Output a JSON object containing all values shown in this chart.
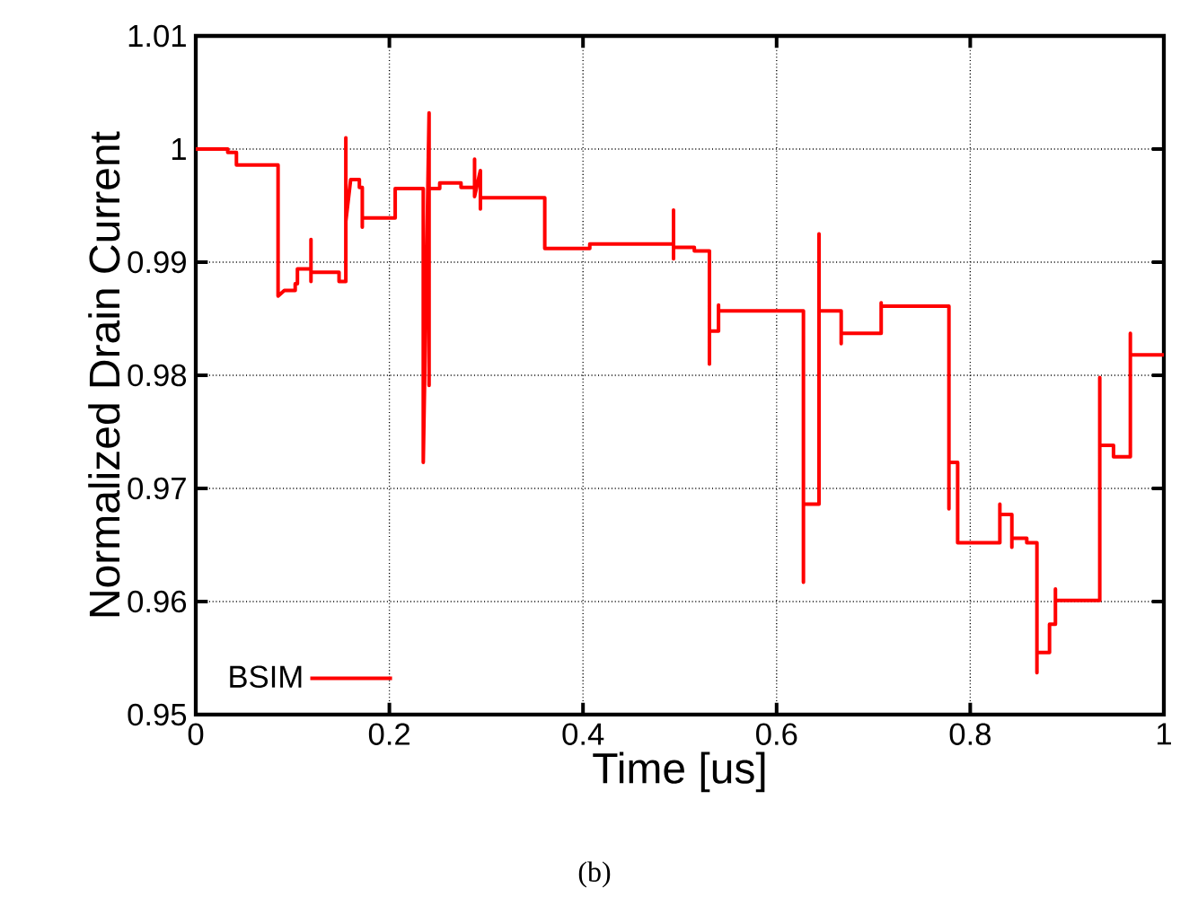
{
  "chart_data": {
    "type": "line",
    "xlabel": "Time [us]",
    "ylabel": "Normalized Drain Current",
    "xlim": [
      0,
      1
    ],
    "ylim": [
      0.95,
      1.01
    ],
    "xticks": [
      0,
      0.2,
      0.4,
      0.6,
      0.8,
      1
    ],
    "yticks": [
      0.95,
      0.96,
      0.97,
      0.98,
      0.99,
      1,
      1.01
    ],
    "grid": true,
    "legend": "bottom left",
    "line_style": "solid",
    "marker": "none",
    "annotations": [
      "(b)"
    ],
    "series": [
      {
        "name": "BSIM",
        "color": "#ff0000",
        "x": [
          0,
          0.033,
          0.033,
          0.042,
          0.042,
          0.085,
          0.085,
          0.0915,
          0.1027,
          0.1027,
          0.105,
          0.105,
          0.119,
          0.119,
          0.119,
          0.119,
          0.148,
          0.148,
          0.155,
          0.155,
          0.155,
          0.16,
          0.169,
          0.169,
          0.172,
          0.172,
          0.172,
          0.206,
          0.206,
          0.235,
          0.235,
          0.241,
          0.241,
          0.241,
          0.252,
          0.252,
          0.274,
          0.274,
          0.288,
          0.288,
          0.288,
          0.294,
          0.294,
          0.294,
          0.3605,
          0.3605,
          0.407,
          0.407,
          0.4935,
          0.4935,
          0.4935,
          0.4935,
          0.515,
          0.515,
          0.5306,
          0.5306,
          0.5306,
          0.54,
          0.54,
          0.54,
          0.6277,
          0.6277,
          0.6277,
          0.6438,
          0.6438,
          0.6438,
          0.6438,
          0.6667,
          0.6667,
          0.6667,
          0.708,
          0.708,
          0.708,
          0.778,
          0.778,
          0.778,
          0.787,
          0.787,
          0.8306,
          0.8306,
          0.8306,
          0.843,
          0.843,
          0.843,
          0.8584,
          0.8584,
          0.8689,
          0.8689,
          0.8689,
          0.8819,
          0.8819,
          0.888,
          0.888,
          0.888,
          0.9338,
          0.9338,
          0.9338,
          0.948,
          0.948,
          0.9654,
          0.9654,
          0.9654,
          1
        ],
        "values": [
          1.0,
          1.0,
          0.9997,
          0.9997,
          0.9986,
          0.9986,
          0.987,
          0.9875,
          0.9875,
          0.9881,
          0.9881,
          0.9894,
          0.9894,
          0.992,
          0.9883,
          0.9891,
          0.9891,
          0.9883,
          0.9883,
          1.001,
          0.9936,
          0.9973,
          0.9973,
          0.9966,
          0.9966,
          0.9931,
          0.9939,
          0.9939,
          0.9965,
          0.9965,
          0.9723,
          1.0032,
          0.9791,
          0.9965,
          0.9965,
          0.997,
          0.997,
          0.9966,
          0.9966,
          0.9991,
          0.9958,
          0.9981,
          0.9947,
          0.9957,
          0.9957,
          0.9912,
          0.9912,
          0.9916,
          0.9916,
          0.9946,
          0.9903,
          0.9913,
          0.9913,
          0.991,
          0.991,
          0.981,
          0.9839,
          0.9839,
          0.9862,
          0.9857,
          0.9857,
          0.9617,
          0.9686,
          0.9686,
          0.9925,
          0.9788,
          0.9857,
          0.9857,
          0.9828,
          0.9837,
          0.9837,
          0.9864,
          0.9861,
          0.9861,
          0.9682,
          0.9723,
          0.9723,
          0.9652,
          0.9652,
          0.9686,
          0.9677,
          0.9677,
          0.9648,
          0.9656,
          0.9656,
          0.9652,
          0.9652,
          0.9537,
          0.9555,
          0.9555,
          0.958,
          0.958,
          0.9611,
          0.9601,
          0.9601,
          0.9798,
          0.9738,
          0.9738,
          0.9728,
          0.9728,
          0.9837,
          0.9818,
          0.9818
        ]
      }
    ]
  }
}
